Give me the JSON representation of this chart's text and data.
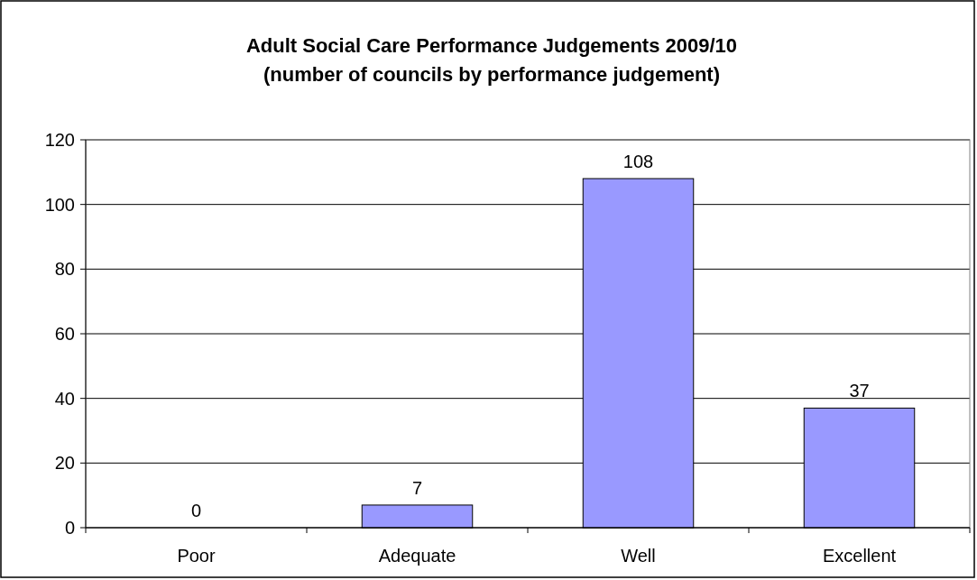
{
  "chart_data": {
    "type": "bar",
    "title": "Adult Social Care Performance Judgements 2009/10",
    "subtitle": "(number of councils by performance judgement)",
    "categories": [
      "Poor",
      "Adequate",
      "Well",
      "Excellent"
    ],
    "values": [
      0,
      7,
      108,
      37
    ],
    "color": "#9999ff",
    "ylim": [
      0,
      120
    ],
    "yticks": [
      0,
      20,
      40,
      60,
      80,
      100,
      120
    ],
    "grid": "y",
    "data_labels": true
  }
}
